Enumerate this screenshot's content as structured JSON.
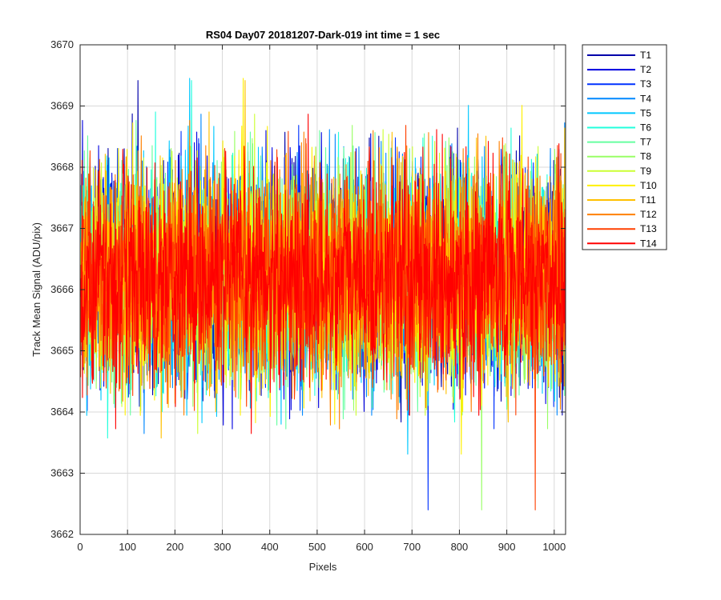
{
  "chart_data": {
    "type": "line",
    "title": "RS04 Day07 20181207-Dark-019 int time = 1 sec",
    "xlabel": "Pixels",
    "ylabel": "Track Mean Signal (ADU/pix)",
    "xlim": [
      0,
      1024
    ],
    "ylim": [
      3662,
      3670
    ],
    "x_ticks": [
      0,
      100,
      200,
      300,
      400,
      500,
      600,
      700,
      800,
      900,
      1000
    ],
    "y_ticks": [
      3662,
      3663,
      3664,
      3665,
      3666,
      3667,
      3668,
      3669,
      3670
    ],
    "grid": true,
    "legend_position": "outside-top-right",
    "x": {
      "start": 1,
      "end": 1024,
      "step": 1
    },
    "series_stats": {
      "mean": 3666.2,
      "std": 0.85,
      "approx_min": 3662.4,
      "approx_max": 3670.0
    },
    "series": [
      {
        "name": "T1",
        "color": "#0000AA"
      },
      {
        "name": "T2",
        "color": "#0000E0"
      },
      {
        "name": "T3",
        "color": "#0032FF"
      },
      {
        "name": "T4",
        "color": "#0088FF"
      },
      {
        "name": "T5",
        "color": "#00C8FF"
      },
      {
        "name": "T6",
        "color": "#22FFDD"
      },
      {
        "name": "T7",
        "color": "#66FFA0"
      },
      {
        "name": "T8",
        "color": "#99FF66"
      },
      {
        "name": "T9",
        "color": "#CCFF33"
      },
      {
        "name": "T10",
        "color": "#FFF000"
      },
      {
        "name": "T11",
        "color": "#FFC000"
      },
      {
        "name": "T12",
        "color": "#FF8000"
      },
      {
        "name": "T13",
        "color": "#FF4000"
      },
      {
        "name": "T14",
        "color": "#FF0000"
      }
    ]
  }
}
